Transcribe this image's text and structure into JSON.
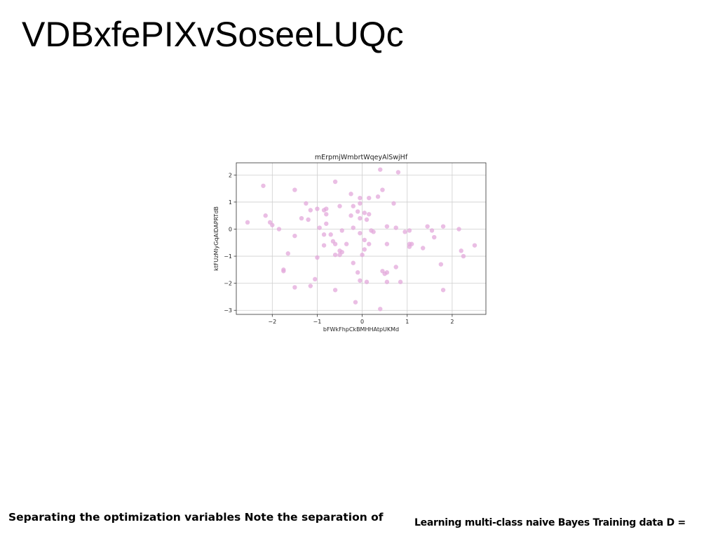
{
  "slide": {
    "title": "VDBxfePIXvSoseeLUQc",
    "footer_left": "Separating the optimization variables Note the separation of",
    "footer_right": "Learning multi-class naive Bayes Training data D ="
  },
  "chart_data": {
    "type": "scatter",
    "title": "mErpmjWmbrtWqeyAlSwjHf",
    "xlabel": "bFWkFhpCkBMHHAtpUKMd",
    "ylabel": "ktFUzMlyGqAlDAPRTdB",
    "xlim": [
      -2.8,
      2.75
    ],
    "ylim": [
      -3.15,
      2.45
    ],
    "xticks": [
      -2,
      -1,
      0,
      1,
      2
    ],
    "yticks": [
      -3,
      -2,
      -1,
      0,
      1,
      2
    ],
    "xtick_labels": [
      "−2",
      "−1",
      "0",
      "1",
      "2"
    ],
    "ytick_labels": [
      "−3",
      "−2",
      "−1",
      "0",
      "1",
      "2"
    ],
    "grid": true,
    "marker_color": "#e3a8db",
    "series": [
      {
        "points": [
          [
            -2.55,
            0.25
          ],
          [
            -2.2,
            1.6
          ],
          [
            -2.15,
            0.5
          ],
          [
            -2.05,
            0.25
          ],
          [
            -2.0,
            0.15
          ],
          [
            -1.85,
            0.0
          ],
          [
            -1.75,
            -1.55
          ],
          [
            -1.75,
            -1.5
          ],
          [
            -1.65,
            -0.9
          ],
          [
            -1.5,
            1.45
          ],
          [
            -1.5,
            -0.25
          ],
          [
            -1.5,
            -2.15
          ],
          [
            -1.35,
            0.4
          ],
          [
            -1.25,
            0.95
          ],
          [
            -1.2,
            0.35
          ],
          [
            -1.15,
            0.7
          ],
          [
            -1.15,
            -2.1
          ],
          [
            -1.05,
            -1.85
          ],
          [
            -1.0,
            -1.05
          ],
          [
            -1.0,
            0.75
          ],
          [
            -0.95,
            0.05
          ],
          [
            -0.85,
            0.7
          ],
          [
            -0.85,
            -0.2
          ],
          [
            -0.85,
            -0.6
          ],
          [
            -0.8,
            0.75
          ],
          [
            -0.8,
            0.55
          ],
          [
            -0.8,
            0.2
          ],
          [
            -0.7,
            -0.2
          ],
          [
            -0.65,
            -0.45
          ],
          [
            -0.6,
            1.75
          ],
          [
            -0.6,
            -0.55
          ],
          [
            -0.6,
            -0.95
          ],
          [
            -0.6,
            -2.25
          ],
          [
            -0.5,
            0.85
          ],
          [
            -0.5,
            -0.8
          ],
          [
            -0.5,
            -0.95
          ],
          [
            -0.45,
            -0.85
          ],
          [
            -0.45,
            -0.05
          ],
          [
            -0.35,
            -0.55
          ],
          [
            -0.25,
            1.3
          ],
          [
            -0.25,
            0.5
          ],
          [
            -0.2,
            0.85
          ],
          [
            -0.2,
            0.05
          ],
          [
            -0.2,
            -1.25
          ],
          [
            -0.15,
            -2.7
          ],
          [
            -0.1,
            0.65
          ],
          [
            -0.1,
            -1.6
          ],
          [
            -0.05,
            1.15
          ],
          [
            -0.05,
            0.95
          ],
          [
            -0.05,
            0.4
          ],
          [
            -0.05,
            -0.15
          ],
          [
            -0.05,
            -1.9
          ],
          [
            0.0,
            -0.95
          ],
          [
            0.05,
            0.6
          ],
          [
            0.05,
            -0.4
          ],
          [
            0.05,
            -0.75
          ],
          [
            0.1,
            0.35
          ],
          [
            0.1,
            -1.95
          ],
          [
            0.15,
            1.15
          ],
          [
            0.15,
            0.55
          ],
          [
            0.15,
            -0.55
          ],
          [
            0.2,
            -0.05
          ],
          [
            0.25,
            -0.1
          ],
          [
            0.35,
            1.2
          ],
          [
            0.4,
            2.2
          ],
          [
            0.4,
            -2.95
          ],
          [
            0.45,
            1.45
          ],
          [
            0.45,
            -1.55
          ],
          [
            0.5,
            -1.65
          ],
          [
            0.55,
            -1.6
          ],
          [
            0.55,
            -0.55
          ],
          [
            0.55,
            0.1
          ],
          [
            0.55,
            -1.95
          ],
          [
            0.7,
            0.95
          ],
          [
            0.75,
            0.05
          ],
          [
            0.75,
            -1.4
          ],
          [
            0.8,
            2.1
          ],
          [
            0.85,
            -1.95
          ],
          [
            0.95,
            -0.1
          ],
          [
            1.05,
            -0.05
          ],
          [
            1.05,
            -0.55
          ],
          [
            1.05,
            -0.65
          ],
          [
            1.1,
            -0.55
          ],
          [
            1.35,
            -0.7
          ],
          [
            1.45,
            0.1
          ],
          [
            1.55,
            -0.05
          ],
          [
            1.6,
            -0.3
          ],
          [
            1.75,
            -1.3
          ],
          [
            1.8,
            -2.25
          ],
          [
            1.8,
            0.1
          ],
          [
            2.15,
            0.0
          ],
          [
            2.2,
            -0.8
          ],
          [
            2.25,
            -1.0
          ],
          [
            2.5,
            -0.6
          ]
        ]
      }
    ]
  }
}
